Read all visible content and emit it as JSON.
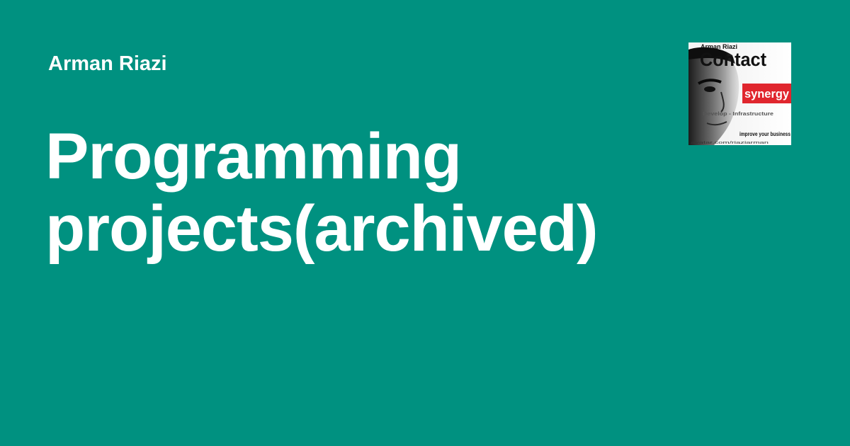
{
  "author": "Arman Riazi",
  "title": "Programming projects(archived)",
  "logo": {
    "name_line": "Arman Riazi",
    "word_top": "Contact",
    "word_badge": "synergy",
    "subtitle": "Develop - Infrastructure",
    "tagline": "improve your business",
    "url": "avatar.com/riaziarman"
  },
  "colors": {
    "background": "#009180",
    "text": "#ffffff",
    "badge": "#e0262e"
  }
}
